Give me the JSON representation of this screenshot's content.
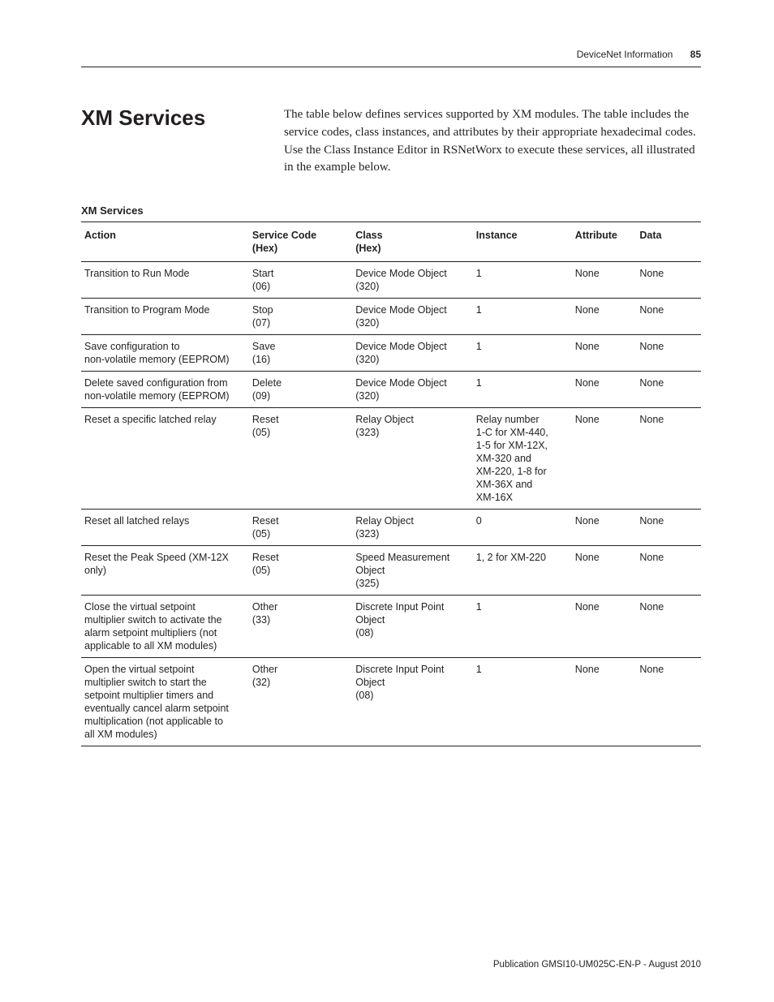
{
  "header": {
    "section": "DeviceNet Information",
    "page_number": "85"
  },
  "heading": "XM Services",
  "intro": "The table below defines services supported by XM modules. The table includes the service codes, class instances, and attributes by their appropriate hexadecimal codes. Use the Class Instance Editor in RSNetWorx to execute these services, all illustrated in the example below.",
  "table": {
    "title": "XM Services",
    "columns": {
      "action": {
        "l1": "Action",
        "l2": ""
      },
      "service": {
        "l1": "Service Code",
        "l2": "(Hex)"
      },
      "class": {
        "l1": "Class",
        "l2": "(Hex)"
      },
      "instance": {
        "l1": "Instance",
        "l2": ""
      },
      "attr": {
        "l1": "Attribute",
        "l2": ""
      },
      "data": {
        "l1": "Data",
        "l2": ""
      }
    },
    "rows": [
      {
        "action": [
          "Transition to Run Mode"
        ],
        "service": [
          "Start",
          "(06)"
        ],
        "class": [
          "Device Mode Object",
          "(320)"
        ],
        "instance": [
          "1"
        ],
        "attr": [
          "None"
        ],
        "data": [
          "None"
        ]
      },
      {
        "action": [
          "Transition to Program Mode"
        ],
        "service": [
          "Stop",
          "(07)"
        ],
        "class": [
          "Device Mode Object",
          "(320)"
        ],
        "instance": [
          "1"
        ],
        "attr": [
          "None"
        ],
        "data": [
          "None"
        ]
      },
      {
        "action": [
          "Save configuration to",
          "non-volatile memory (EEPROM)"
        ],
        "service": [
          "Save",
          "(16)"
        ],
        "class": [
          "Device Mode Object",
          "(320)"
        ],
        "instance": [
          "1"
        ],
        "attr": [
          "None"
        ],
        "data": [
          "None"
        ]
      },
      {
        "action": [
          "Delete saved configuration from",
          "non-volatile memory (EEPROM)"
        ],
        "service": [
          "Delete",
          "(09)"
        ],
        "class": [
          "Device Mode Object",
          "(320)"
        ],
        "instance": [
          "1"
        ],
        "attr": [
          "None"
        ],
        "data": [
          "None"
        ]
      },
      {
        "action": [
          "Reset a specific latched relay"
        ],
        "service": [
          "Reset",
          "(05)"
        ],
        "class": [
          "Relay Object",
          "(323)"
        ],
        "instance": [
          "Relay number",
          "1-C for XM-440,",
          "1-5 for XM-12X,",
          "XM-320 and",
          "XM-220, 1-8 for",
          "XM-36X and",
          "XM-16X"
        ],
        "attr": [
          "None"
        ],
        "data": [
          "None"
        ]
      },
      {
        "action": [
          "Reset all latched relays"
        ],
        "service": [
          "Reset",
          "(05)"
        ],
        "class": [
          "Relay Object",
          "(323)"
        ],
        "instance": [
          "0"
        ],
        "attr": [
          "None"
        ],
        "data": [
          "None"
        ]
      },
      {
        "action": [
          "Reset the Peak Speed (XM-12X",
          "only)"
        ],
        "service": [
          "Reset",
          "(05)"
        ],
        "class": [
          "Speed Measurement",
          "Object",
          "(325)"
        ],
        "instance": [
          "1, 2 for XM-220"
        ],
        "attr": [
          "None"
        ],
        "data": [
          "None"
        ]
      },
      {
        "action": [
          "Close the virtual setpoint",
          "multiplier switch to activate the",
          "alarm setpoint multipliers (not",
          "applicable to all XM modules)"
        ],
        "service": [
          "Other",
          "(33)"
        ],
        "class": [
          "Discrete Input Point",
          "Object",
          "(08)"
        ],
        "instance": [
          "1"
        ],
        "attr": [
          "None"
        ],
        "data": [
          "None"
        ]
      },
      {
        "action": [
          "Open the virtual setpoint",
          "multiplier switch to start the",
          "setpoint multiplier timers and",
          "eventually cancel alarm setpoint",
          "multiplication (not applicable to",
          "all XM modules)"
        ],
        "service": [
          "Other",
          "(32)"
        ],
        "class": [
          "Discrete Input Point",
          "Object",
          "(08)"
        ],
        "instance": [
          "1"
        ],
        "attr": [
          "None"
        ],
        "data": [
          "None"
        ]
      }
    ]
  },
  "footer": "Publication GMSI10-UM025C-EN-P - August 2010"
}
